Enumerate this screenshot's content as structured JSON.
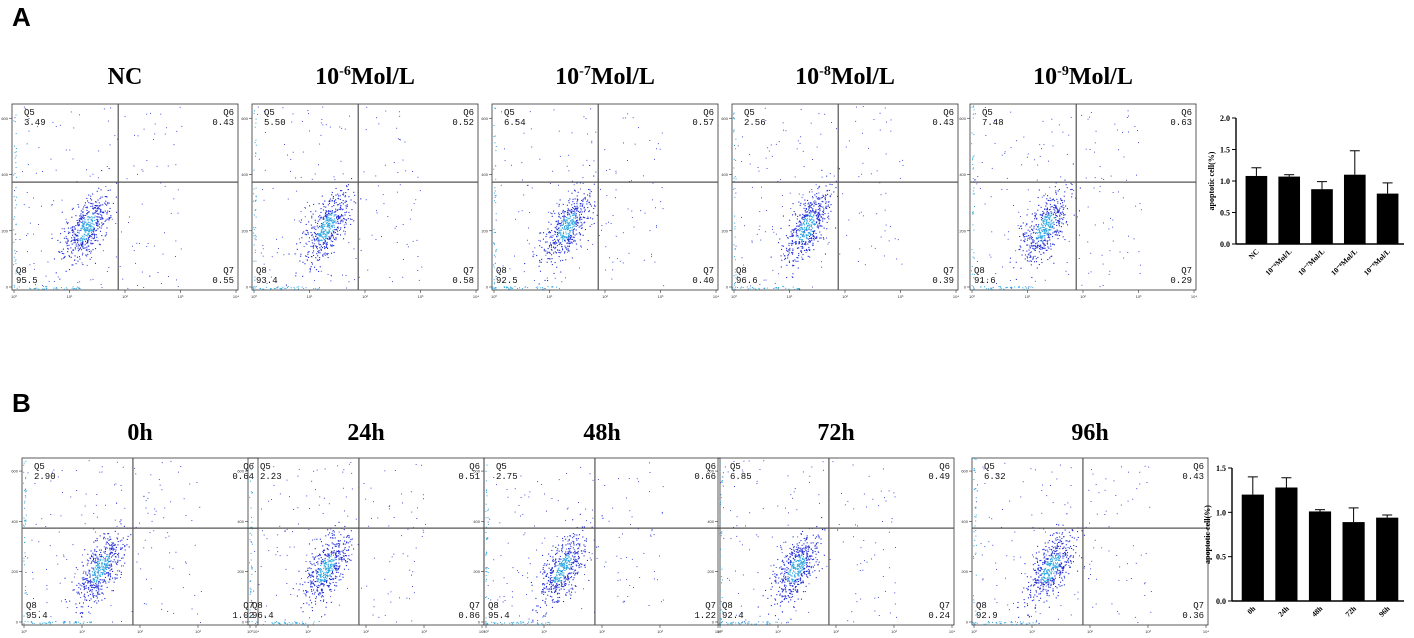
{
  "panels": [
    {
      "letter": "A",
      "flow_titles": [
        {
          "base": "NC",
          "exp": "",
          "unit": ""
        },
        {
          "base": "10",
          "exp": "-6",
          "unit": "Mol/L"
        },
        {
          "base": "10",
          "exp": "-7",
          "unit": "Mol/L"
        },
        {
          "base": "10",
          "exp": "-8",
          "unit": "Mol/L"
        },
        {
          "base": "10",
          "exp": "-9",
          "unit": "Mol/L"
        }
      ],
      "flow_quadrants": [
        {
          "q5": "3.49",
          "q6": "0.43",
          "q7": "0.55",
          "q8": "95.5"
        },
        {
          "q5": "5.50",
          "q6": "0.52",
          "q7": "0.58",
          "q8": "93.4"
        },
        {
          "q5": "6.54",
          "q6": "0.57",
          "q7": "0.40",
          "q8": "92.5"
        },
        {
          "q5": "2.56",
          "q6": "0.43",
          "q7": "0.39",
          "q8": "96.6"
        },
        {
          "q5": "7.48",
          "q6": "0.63",
          "q7": "0.29",
          "q8": "91.6"
        }
      ]
    },
    {
      "letter": "B",
      "flow_titles": [
        {
          "base": "0h",
          "exp": "",
          "unit": ""
        },
        {
          "base": "24h",
          "exp": "",
          "unit": ""
        },
        {
          "base": "48h",
          "exp": "",
          "unit": ""
        },
        {
          "base": "72h",
          "exp": "",
          "unit": ""
        },
        {
          "base": "96h",
          "exp": "",
          "unit": ""
        }
      ],
      "flow_quadrants": [
        {
          "q5": "2.90",
          "q6": "0.64",
          "q7": "1.02",
          "q8": "95.4"
        },
        {
          "q5": "2.23",
          "q6": "0.51",
          "q7": "0.86",
          "q8": "96.4"
        },
        {
          "q5": "2.75",
          "q6": "0.66",
          "q7": "1.22",
          "q8": "95.4"
        },
        {
          "q5": "6.85",
          "q6": "0.49",
          "q7": "0.24",
          "q8": "92.4"
        },
        {
          "q5": "6.32",
          "q6": "0.43",
          "q7": "0.36",
          "q8": "92.9"
        }
      ]
    }
  ],
  "quadrant_names": {
    "q5": "Q5",
    "q6": "Q6",
    "q7": "Q7",
    "q8": "Q8"
  },
  "flow_axis": {
    "y_ticks": [
      "0",
      "200",
      "400",
      "600"
    ],
    "x_ticks": [
      "10⁰",
      "10¹",
      "10²",
      "10³",
      "10⁴"
    ]
  },
  "colors": {
    "dots": "#1f2bd6",
    "dense": "#2ba6e0",
    "bar": "#000000",
    "gate": "#555555"
  },
  "chart_data": [
    {
      "type": "bar",
      "categories": [
        "NC",
        "10⁻⁶Mol/L",
        "10⁻⁷Mol/L",
        "10⁻⁸Mol/L",
        "10⁻⁹Mol/L"
      ],
      "values": [
        1.08,
        1.07,
        0.87,
        1.1,
        0.8
      ],
      "errors": [
        0.13,
        0.03,
        0.12,
        0.38,
        0.17
      ],
      "ylabel": "apoptotic cell(%)",
      "ylim": [
        0,
        2.0
      ],
      "yticks": [
        "0.0",
        "0.5",
        "1.0",
        "1.5",
        "2.0"
      ]
    },
    {
      "type": "bar",
      "categories": [
        "0h",
        "24h",
        "48h",
        "72h",
        "96h"
      ],
      "values": [
        1.2,
        1.28,
        1.01,
        0.89,
        0.94
      ],
      "errors": [
        0.2,
        0.11,
        0.02,
        0.16,
        0.03
      ],
      "ylabel": "apoptotic cell(%)",
      "ylim": [
        0,
        1.5
      ],
      "yticks": [
        "0.0",
        "0.5",
        "1.0",
        "1.5"
      ]
    }
  ]
}
